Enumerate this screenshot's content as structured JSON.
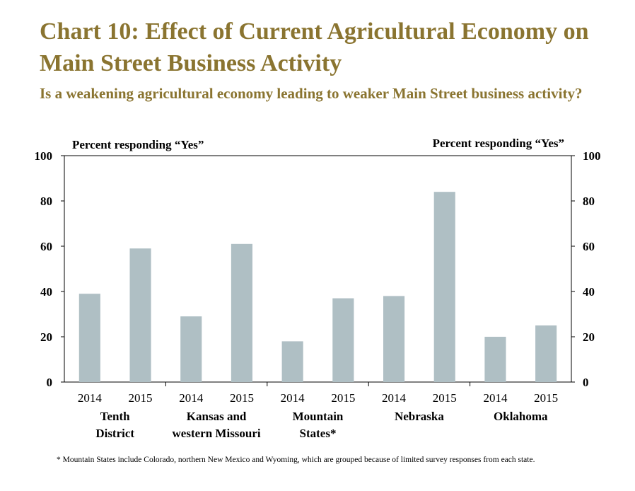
{
  "title": "Chart 10: Effect of  Current Agricultural Economy on Main Street Business Activity",
  "subtitle": "Is a weakening agricultural economy leading to weaker Main Street business activity?",
  "footnote": "* Mountain States include Colorado, northern New Mexico and Wyoming, which are grouped because of limited survey responses from each state.",
  "colors": {
    "title": "#8a7430",
    "bar": "#afbfc4",
    "axis": "#000000"
  },
  "chart_data": {
    "type": "bar",
    "y_axis_label_left": "Percent responding “Yes”",
    "y_axis_label_right": "Percent responding “Yes”",
    "ylim": [
      0,
      100
    ],
    "yticks": [
      "0",
      "20",
      "40",
      "60",
      "80",
      "100"
    ],
    "grid": false,
    "legend": "none",
    "groups": [
      {
        "label": [
          "Tenth",
          "District"
        ],
        "categories": [
          "2014",
          "2015"
        ],
        "values": [
          39,
          59
        ]
      },
      {
        "label": [
          "Kansas and",
          "western Missouri"
        ],
        "categories": [
          "2014",
          "2015"
        ],
        "values": [
          29,
          61
        ]
      },
      {
        "label": [
          "Mountain",
          "States*"
        ],
        "categories": [
          "2014",
          "2015"
        ],
        "values": [
          18,
          37
        ]
      },
      {
        "label": [
          "Nebraska"
        ],
        "categories": [
          "2014",
          "2015"
        ],
        "values": [
          38,
          84
        ]
      },
      {
        "label": [
          "Oklahoma"
        ],
        "categories": [
          "2014",
          "2015"
        ],
        "values": [
          20,
          25
        ]
      }
    ]
  }
}
